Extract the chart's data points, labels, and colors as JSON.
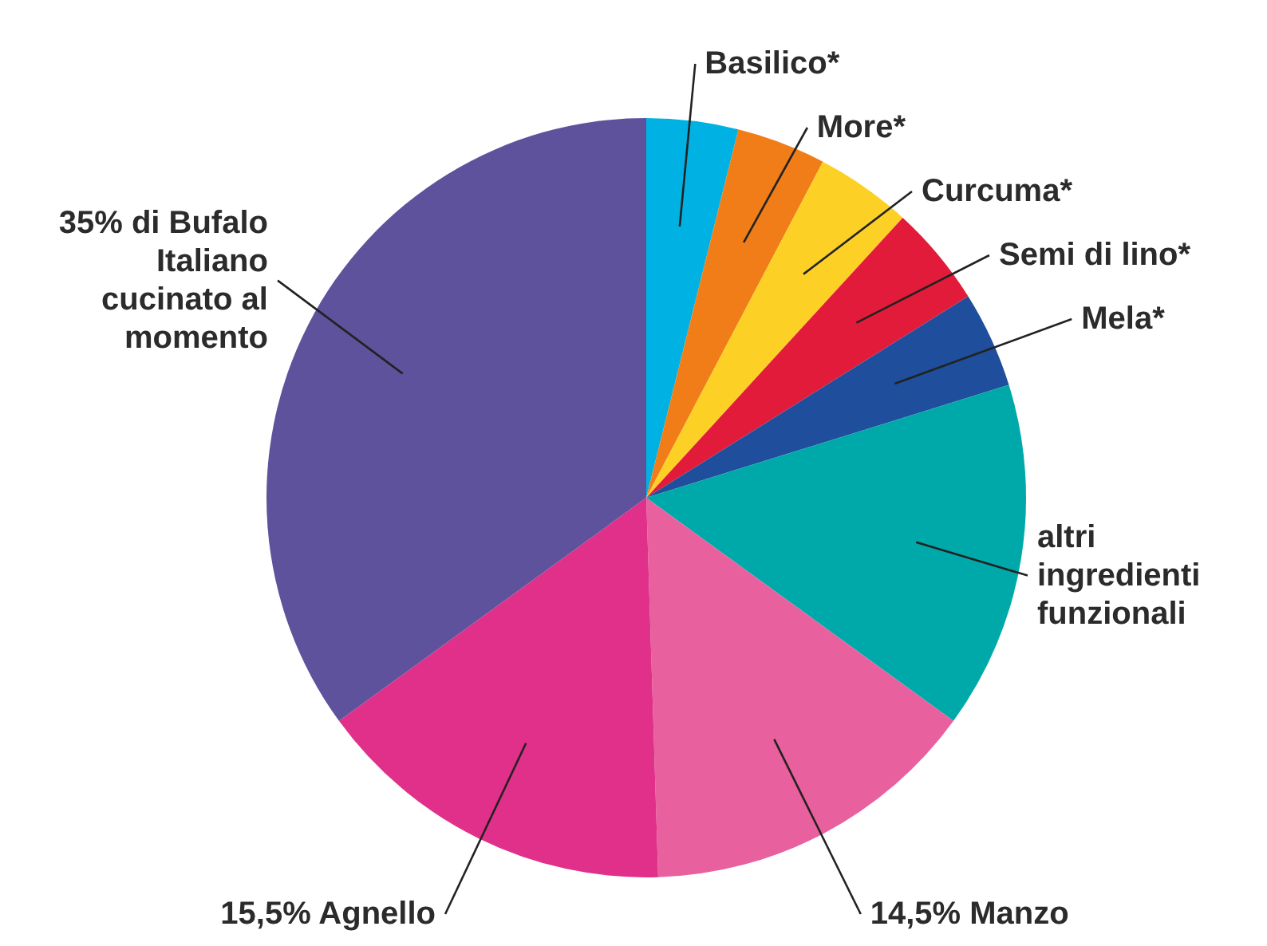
{
  "chart_data": {
    "type": "pie",
    "categories": [
      "Basilico*",
      "More*",
      "Curcuma*",
      "Semi di lino*",
      "Mela*",
      "altri ingredienti funzionali",
      "14,5% Manzo",
      "15,5% Agnello",
      "35% di Bufalo Italiano cucinato al momento"
    ],
    "values": [
      3.9,
      3.8,
      4.1,
      4.3,
      4.1,
      14.8,
      14.5,
      15.5,
      35
    ],
    "colors": [
      "#00b2e3",
      "#f07d17",
      "#fdd025",
      "#e31b3a",
      "#1f4e9c",
      "#00a9a9",
      "#e8609e",
      "#e0308a",
      "#5f529c"
    ]
  }
}
